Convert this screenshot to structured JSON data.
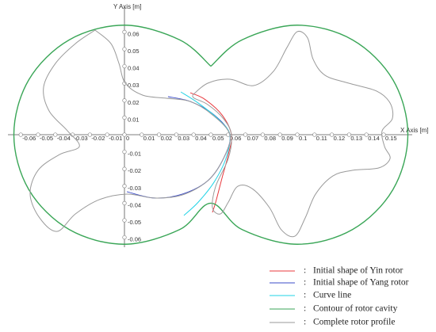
{
  "chart_data": {
    "type": "line",
    "x_label": "X Axis [m]",
    "y_label": "Y Axis [m]",
    "xlim": [
      -0.07,
      0.17
    ],
    "ylim": [
      -0.07,
      0.07
    ],
    "xticks": [
      -0.06,
      -0.05,
      -0.04,
      -0.03,
      -0.02,
      -0.01,
      0,
      0.01,
      0.02,
      0.03,
      0.04,
      0.05,
      0.06,
      0.07,
      0.08,
      0.09,
      0.1,
      0.11,
      0.12,
      0.13,
      0.14,
      0.15
    ],
    "yticks": [
      0.06,
      0.05,
      0.04,
      0.03,
      0.02,
      0.01,
      -0.01,
      -0.02,
      -0.03,
      -0.04,
      -0.05,
      -0.06
    ],
    "legend_separator": ":",
    "series": [
      {
        "name": "Initial shape of Yin rotor",
        "color": "#e8383d",
        "x": [
          0.0381,
          0.0463,
          0.0564,
          0.0619,
          0.0601,
          0.0564,
          0.0528,
          0.0509
        ],
        "y": [
          0.0245,
          0.0208,
          0.0116,
          0,
          -0.0116,
          -0.0255,
          -0.0394,
          -0.0454
        ]
      },
      {
        "name": "Initial shape of Yang rotor",
        "color": "#3b4bc8",
        "x": [
          0.0252,
          0.0381,
          0.0518,
          0.061,
          0.0573,
          0.0482,
          0.0335,
          0.0174,
          0.0014
        ],
        "y": [
          0.0222,
          0.0194,
          0.0116,
          0,
          -0.0139,
          -0.0269,
          -0.0347,
          -0.037,
          -0.0333
        ]
      },
      {
        "name": "Curve line",
        "color": "#22d3e6",
        "x": [
          0.0326,
          0.0427,
          0.0541,
          0.061,
          0.0587,
          0.0518,
          0.0427,
          0.0344
        ],
        "y": [
          0.025,
          0.0185,
          0.0093,
          0,
          -0.0139,
          -0.0278,
          -0.0394,
          -0.0472
        ]
      },
      {
        "name": "Contour of rotor cavity",
        "color": "#3aa657",
        "x": [
          0.05,
          0.032,
          0,
          -0.032,
          -0.0554,
          -0.064,
          -0.0554,
          -0.032,
          0,
          0.032,
          0.05,
          0.068,
          0.1,
          0.132,
          0.1554,
          0.164,
          0.1554,
          0.132,
          0.1,
          0.068,
          0.05
        ],
        "y": [
          0.04,
          0.0554,
          0.064,
          0.0554,
          0.032,
          0,
          -0.032,
          -0.0554,
          -0.064,
          -0.0554,
          -0.04,
          -0.0554,
          -0.064,
          -0.0554,
          -0.032,
          0,
          0.032,
          0.0554,
          0.064,
          0.0554,
          0.04
        ]
      },
      {
        "name": "Complete rotor profile",
        "color": "#9a9a9a",
        "x": [
          -0.017,
          -0.0078,
          -0.0032,
          0.0005,
          0.0106,
          0.0243,
          0.0381,
          0.0509,
          0.061,
          0.0573,
          0.0482,
          0.0335,
          0.0174,
          0.0014,
          -0.0147,
          -0.0284,
          -0.039,
          -0.0491,
          -0.0546,
          -0.05,
          -0.0376,
          -0.0261,
          -0.033,
          -0.0436,
          -0.0468,
          -0.0399,
          -0.0284,
          -0.017,
          null,
          0.0394,
          0.0482,
          0.061,
          0.0748,
          0.0862,
          0.094,
          0.1,
          0.106,
          0.1092,
          0.1161,
          0.1298,
          0.1459,
          0.1537,
          0.155,
          0.1491,
          0.1505,
          0.1537,
          0.1472,
          0.1321,
          0.1206,
          0.1106,
          0.1046,
          0.0986,
          0.0908,
          0.0839,
          0.0739,
          0.0656,
          0.0601,
          0.0555,
          0.0509,
          0.0528,
          0.0601,
          0.0619,
          0.0573,
          0.0482,
          0.0404,
          0.0394
        ],
        "y": [
          0.0611,
          0.0532,
          0.0417,
          0.0301,
          0.0231,
          0.0213,
          0.0194,
          0.0116,
          0,
          -0.0139,
          -0.0269,
          -0.0352,
          -0.037,
          -0.0347,
          -0.038,
          -0.0463,
          -0.0565,
          -0.0486,
          -0.0347,
          -0.0208,
          -0.0116,
          -0.0069,
          0.0023,
          0.0139,
          0.0278,
          0.0417,
          0.0532,
          0.0611,
          null,
          0.0231,
          0.0301,
          0.0324,
          0.0287,
          0.037,
          0.0509,
          0.0602,
          0.0565,
          0.044,
          0.0347,
          0.0301,
          0.0255,
          0.0185,
          0.0093,
          0.0023,
          -0.0069,
          -0.0139,
          -0.0194,
          -0.0208,
          -0.0241,
          -0.0347,
          -0.0486,
          -0.0593,
          -0.0556,
          -0.0426,
          -0.0315,
          -0.0301,
          -0.0394,
          -0.0463,
          -0.0426,
          -0.0301,
          -0.0139,
          0,
          0.0093,
          0.0176,
          0.0213,
          0.0231
        ]
      }
    ]
  }
}
